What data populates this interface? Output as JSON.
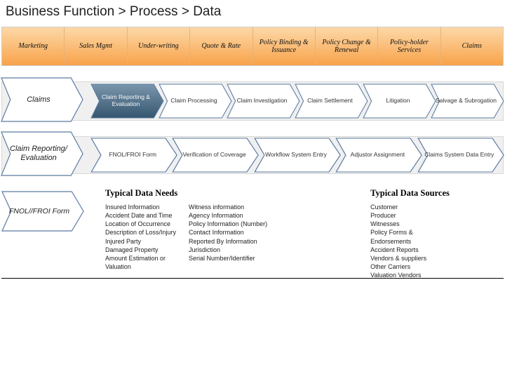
{
  "title": "Business Function > Process > Data",
  "colors": {
    "orange_top": "#fdd9a8",
    "orange_bottom": "#f8a24a",
    "band_bg": "#f0f0f0",
    "band_border": "#d8d8d8",
    "big_chev_fill": "#ffffff",
    "big_chev_stroke": "#5a7aa0",
    "chev_outline_stroke": "#5a7aa0",
    "chev_outline_fill": "#ffffff",
    "chev_active_top": "#7a96ad",
    "chev_active_bottom": "#35566f",
    "text_dark": "#202020",
    "text_white": "#f7f7f7",
    "bullet": "#2a4d7a"
  },
  "row1": {
    "items": [
      "Marketing",
      "Sales Mgmt",
      "Under-writing",
      "Quote & Rate",
      "Policy Binding & Issuance",
      "Policy Change & Renewal",
      "Policy-holder Services",
      "Claims"
    ]
  },
  "row2": {
    "big": "Claims",
    "items": [
      {
        "label": "Claim Reporting & Evaluation",
        "active": true
      },
      {
        "label": "Claim Processing",
        "active": false
      },
      {
        "label": "Claim Investigation",
        "active": false
      },
      {
        "label": "Claim Settlement",
        "active": false
      },
      {
        "label": "Litigation",
        "active": false
      },
      {
        "label": "Salvage & Subrogation",
        "active": false
      }
    ]
  },
  "row3": {
    "big": "Claim Reporting/ Evaluation",
    "items": [
      {
        "label": "FNOL/FROI Form",
        "active": false
      },
      {
        "label": "Verification of Coverage",
        "active": false
      },
      {
        "label": "Workflow System Entry",
        "active": false
      },
      {
        "label": "Adjustor Assignment",
        "active": false
      },
      {
        "label": "Claims System Data Entry",
        "active": false
      }
    ]
  },
  "row4": {
    "lone": "FNOL//FROI Form",
    "needs_heading": "Typical Data Needs",
    "sources_heading": "Typical Data Sources",
    "needs_col1": [
      "Insured Information",
      "Accident Date and Time",
      "Location of Occurrence",
      "Description of Loss/Injury",
      "Injured Party",
      "Damaged Property",
      "Amount Estimation or",
      "Valuation"
    ],
    "needs_col2": [
      "Witness information",
      "Agency Information",
      "Policy Information (Number)",
      "Contact Information",
      "Reported By Information",
      "Jurisdiction",
      "Serial Number/Identifier"
    ],
    "sources": [
      "Customer",
      "Producer",
      "Witnesses",
      "Policy Forms &",
      "Endorsements",
      "Accident Reports",
      "Vendors & suppliers",
      "Other Carriers",
      "Valuation Vendors"
    ]
  }
}
